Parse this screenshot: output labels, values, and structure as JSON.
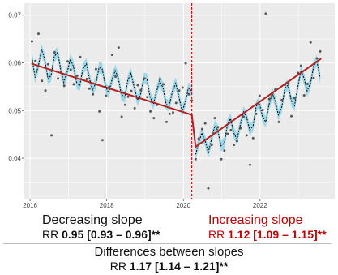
{
  "chart_data": {
    "type": "line",
    "title": "",
    "xlabel": "",
    "ylabel": "",
    "xlim": [
      2015.85,
      2023.95
    ],
    "ylim": [
      0.0315,
      0.0725
    ],
    "x_ticks": [
      {
        "value": 2016,
        "label": "2016"
      },
      {
        "value": 2018,
        "label": "2018"
      },
      {
        "value": 2020,
        "label": "2020"
      },
      {
        "value": 2022,
        "label": "2022"
      }
    ],
    "y_ticks": [
      {
        "value": 0.04,
        "label": "0.04"
      },
      {
        "value": 0.05,
        "label": "0.05"
      },
      {
        "value": 0.06,
        "label": "0.06"
      },
      {
        "value": 0.07,
        "label": "0.07"
      }
    ],
    "grid": true,
    "interruption_x": 2020.22,
    "trend_segments": [
      {
        "x": [
          2016.05,
          2020.22
        ],
        "y": [
          0.0598,
          0.0491
        ]
      },
      {
        "x": [
          2020.22,
          2020.32
        ],
        "y": [
          0.0491,
          0.0424
        ]
      },
      {
        "x": [
          2020.32,
          2023.58
        ],
        "y": [
          0.0424,
          0.0608
        ]
      }
    ],
    "fitted": {
      "x": [
        2016.05,
        2016.13,
        2016.22,
        2016.3,
        2016.38,
        2016.47,
        2016.55,
        2016.63,
        2016.72,
        2016.8,
        2016.88,
        2016.97,
        2017.05,
        2017.13,
        2017.22,
        2017.3,
        2017.38,
        2017.47,
        2017.55,
        2017.63,
        2017.72,
        2017.8,
        2017.88,
        2017.97,
        2018.05,
        2018.13,
        2018.22,
        2018.3,
        2018.38,
        2018.47,
        2018.55,
        2018.63,
        2018.72,
        2018.8,
        2018.88,
        2018.97,
        2019.05,
        2019.13,
        2019.22,
        2019.3,
        2019.38,
        2019.47,
        2019.55,
        2019.63,
        2019.72,
        2019.8,
        2019.88,
        2019.97,
        2020.05,
        2020.13,
        2020.22,
        2020.32,
        2020.4,
        2020.48,
        2020.57,
        2020.65,
        2020.73,
        2020.82,
        2020.9,
        2020.98,
        2021.07,
        2021.15,
        2021.23,
        2021.32,
        2021.4,
        2021.48,
        2021.57,
        2021.65,
        2021.73,
        2021.82,
        2021.9,
        2021.98,
        2022.07,
        2022.15,
        2022.23,
        2022.32,
        2022.4,
        2022.48,
        2022.57,
        2022.65,
        2022.73,
        2022.82,
        2022.9,
        2022.98,
        2023.07,
        2023.15,
        2023.23,
        2023.32,
        2023.4,
        2023.48,
        2023.57
      ],
      "y": [
        0.0612,
        0.0569,
        0.0595,
        0.0628,
        0.0608,
        0.0566,
        0.0574,
        0.0613,
        0.0622,
        0.0586,
        0.0559,
        0.0581,
        0.0608,
        0.0593,
        0.0557,
        0.0553,
        0.0588,
        0.0598,
        0.0567,
        0.0543,
        0.0558,
        0.059,
        0.0588,
        0.0551,
        0.0537,
        0.0562,
        0.0584,
        0.0569,
        0.0534,
        0.0528,
        0.0563,
        0.0578,
        0.0548,
        0.0522,
        0.0533,
        0.0567,
        0.0566,
        0.0528,
        0.0514,
        0.054,
        0.0562,
        0.0548,
        0.0513,
        0.051,
        0.0542,
        0.0557,
        0.053,
        0.0498,
        0.0518,
        0.0547,
        0.0541,
        0.0408,
        0.0432,
        0.0453,
        0.0436,
        0.0412,
        0.0438,
        0.0468,
        0.0458,
        0.0426,
        0.0432,
        0.0471,
        0.0483,
        0.0452,
        0.044,
        0.0468,
        0.0497,
        0.0486,
        0.0459,
        0.0468,
        0.0509,
        0.0516,
        0.0486,
        0.0476,
        0.0511,
        0.0537,
        0.0518,
        0.0491,
        0.0508,
        0.0547,
        0.0553,
        0.052,
        0.051,
        0.0547,
        0.0584,
        0.0567,
        0.0541,
        0.0558,
        0.0593,
        0.0605,
        0.0568
      ]
    },
    "observed": {
      "x": [
        2016.05,
        2016.14,
        2016.22,
        2016.31,
        2016.4,
        2016.47,
        2016.56,
        2016.64,
        2016.73,
        2016.81,
        2016.89,
        2016.98,
        2017.06,
        2017.14,
        2017.23,
        2017.31,
        2017.39,
        2017.48,
        2017.55,
        2017.64,
        2017.72,
        2017.81,
        2017.89,
        2017.98,
        2018.06,
        2018.14,
        2018.23,
        2018.31,
        2018.39,
        2018.48,
        2018.56,
        2018.64,
        2018.73,
        2018.81,
        2018.89,
        2018.98,
        2019.06,
        2019.14,
        2019.23,
        2019.31,
        2019.39,
        2019.48,
        2019.56,
        2019.64,
        2019.73,
        2019.81,
        2019.89,
        2019.98,
        2020.06,
        2020.14,
        2020.22,
        2020.32,
        2020.4,
        2020.49,
        2020.57,
        2020.65,
        2020.74,
        2020.82,
        2020.9,
        2020.99,
        2021.07,
        2021.15,
        2021.24,
        2021.32,
        2021.4,
        2021.49,
        2021.57,
        2021.65,
        2021.74,
        2021.82,
        2021.9,
        2021.99,
        2022.07,
        2022.15,
        2022.24,
        2022.32,
        2022.4,
        2022.49,
        2022.57,
        2022.65,
        2022.74,
        2022.82,
        2022.9,
        2022.99,
        2023.07,
        2023.15,
        2023.24,
        2023.32,
        2023.4,
        2023.49,
        2023.57
      ],
      "y": [
        0.0645,
        0.0604,
        0.0661,
        0.0562,
        0.0542,
        0.0597,
        0.0448,
        0.0622,
        0.0567,
        0.0581,
        0.0552,
        0.0603,
        0.0586,
        0.0555,
        0.0573,
        0.0612,
        0.0564,
        0.0566,
        0.0546,
        0.0534,
        0.0587,
        0.0498,
        0.0438,
        0.0531,
        0.0549,
        0.0617,
        0.0571,
        0.0632,
        0.0487,
        0.0512,
        0.0529,
        0.0541,
        0.0505,
        0.0553,
        0.0543,
        0.0567,
        0.0528,
        0.0498,
        0.0484,
        0.0512,
        0.0566,
        0.0555,
        0.0476,
        0.0493,
        0.0496,
        0.0516,
        0.0542,
        0.0548,
        0.0599,
        0.0534,
        0.0521,
        0.0398,
        0.0441,
        0.0461,
        0.0473,
        0.0337,
        0.0428,
        0.0484,
        0.0465,
        0.0398,
        0.0416,
        0.0451,
        0.0459,
        0.0428,
        0.0436,
        0.0463,
        0.0487,
        0.0448,
        0.0386,
        0.0442,
        0.0493,
        0.0531,
        0.0501,
        0.0703,
        0.0524,
        0.0535,
        0.0544,
        0.0476,
        0.0522,
        0.0554,
        0.0558,
        0.0488,
        0.0526,
        0.0579,
        0.0594,
        0.0532,
        0.0556,
        0.0643,
        0.0568,
        0.0609,
        0.0624
      ]
    }
  },
  "annotations": {
    "left": {
      "title": "Decreasing slope",
      "rr_prefix": "RR ",
      "rr_value": "0.95 [0.93 – 0.96]**"
    },
    "right": {
      "title": "Increasing slope",
      "rr_prefix": "RR ",
      "rr_value": "1.12 [1.09 – 1.15]**"
    },
    "bottom": {
      "title": "Differences between slopes",
      "rr_prefix": "RR ",
      "rr_value": "1.17 [1.14 – 1.21]**"
    }
  },
  "colors": {
    "panel_background": "#ebebeb",
    "grid": "#ffffff",
    "trend_line": "#b22222",
    "interruption_line": "#c00000",
    "confidence_band": "#8fd3e8",
    "fitted_line": "#000000",
    "points": "#555555"
  }
}
